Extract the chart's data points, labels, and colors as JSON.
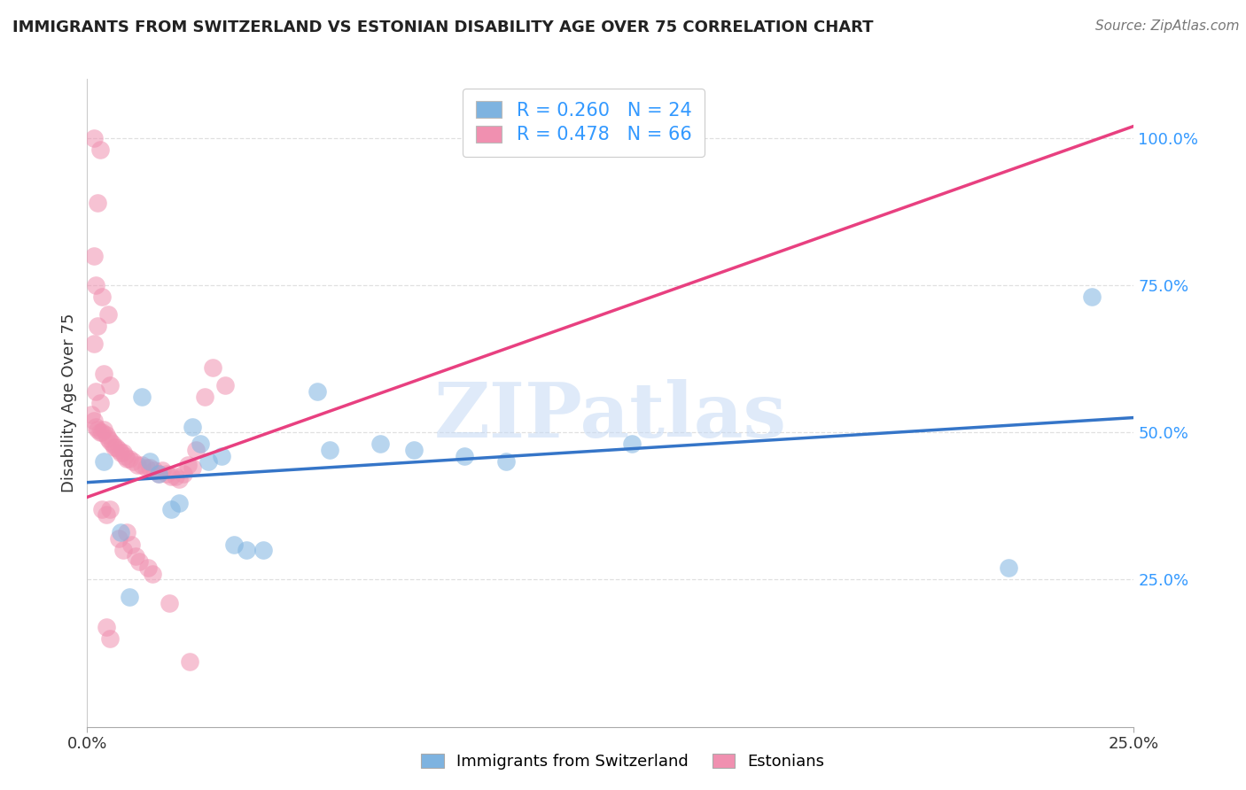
{
  "title": "IMMIGRANTS FROM SWITZERLAND VS ESTONIAN DISABILITY AGE OVER 75 CORRELATION CHART",
  "source": "Source: ZipAtlas.com",
  "ylabel": "Disability Age Over 75",
  "xlim": [
    0.0,
    25.0
  ],
  "ylim": [
    0.0,
    110.0
  ],
  "yticks": [
    25.0,
    50.0,
    75.0,
    100.0
  ],
  "ytick_labels": [
    "25.0%",
    "50.0%",
    "75.0%",
    "100.0%"
  ],
  "xticks": [
    0.0,
    25.0
  ],
  "xtick_labels": [
    "0.0%",
    "25.0%"
  ],
  "legend_r_blue": "R = 0.260",
  "legend_n_blue": "N = 24",
  "legend_r_pink": "R = 0.478",
  "legend_n_pink": "N = 66",
  "color_blue": "#7eb3e0",
  "color_pink": "#f090b0",
  "color_blue_line": "#3575c8",
  "color_pink_line": "#e84080",
  "label_blue": "Immigrants from Switzerland",
  "label_pink": "Estonians",
  "blue_points": [
    [
      0.4,
      45.0
    ],
    [
      0.8,
      33.0
    ],
    [
      1.0,
      22.0
    ],
    [
      1.3,
      56.0
    ],
    [
      1.5,
      45.0
    ],
    [
      1.7,
      43.0
    ],
    [
      2.0,
      37.0
    ],
    [
      2.2,
      38.0
    ],
    [
      2.5,
      51.0
    ],
    [
      2.7,
      48.0
    ],
    [
      2.9,
      45.0
    ],
    [
      3.2,
      46.0
    ],
    [
      3.5,
      31.0
    ],
    [
      3.8,
      30.0
    ],
    [
      4.2,
      30.0
    ],
    [
      5.5,
      57.0
    ],
    [
      5.8,
      47.0
    ],
    [
      7.0,
      48.0
    ],
    [
      7.8,
      47.0
    ],
    [
      9.0,
      46.0
    ],
    [
      10.0,
      45.0
    ],
    [
      13.0,
      48.0
    ],
    [
      22.0,
      27.0
    ],
    [
      24.0,
      73.0
    ]
  ],
  "pink_points": [
    [
      0.15,
      100.0
    ],
    [
      0.25,
      89.0
    ],
    [
      0.3,
      98.0
    ],
    [
      0.15,
      80.0
    ],
    [
      0.2,
      75.0
    ],
    [
      0.15,
      65.0
    ],
    [
      0.25,
      68.0
    ],
    [
      0.2,
      57.0
    ],
    [
      0.3,
      55.0
    ],
    [
      0.35,
      73.0
    ],
    [
      0.5,
      70.0
    ],
    [
      0.4,
      60.0
    ],
    [
      0.55,
      58.0
    ],
    [
      0.1,
      53.0
    ],
    [
      0.15,
      52.0
    ],
    [
      0.2,
      51.0
    ],
    [
      0.25,
      50.5
    ],
    [
      0.3,
      50.0
    ],
    [
      0.35,
      50.0
    ],
    [
      0.4,
      50.5
    ],
    [
      0.45,
      49.5
    ],
    [
      0.5,
      49.0
    ],
    [
      0.55,
      48.5
    ],
    [
      0.6,
      48.0
    ],
    [
      0.65,
      47.5
    ],
    [
      0.7,
      47.5
    ],
    [
      0.75,
      47.0
    ],
    [
      0.8,
      46.5
    ],
    [
      0.85,
      46.5
    ],
    [
      0.9,
      46.0
    ],
    [
      0.95,
      45.5
    ],
    [
      1.0,
      45.5
    ],
    [
      1.1,
      45.0
    ],
    [
      1.2,
      44.5
    ],
    [
      1.3,
      44.5
    ],
    [
      1.4,
      44.0
    ],
    [
      1.5,
      44.0
    ],
    [
      1.6,
      43.5
    ],
    [
      1.7,
      43.0
    ],
    [
      1.8,
      43.5
    ],
    [
      1.9,
      43.0
    ],
    [
      2.0,
      42.5
    ],
    [
      2.1,
      42.5
    ],
    [
      2.2,
      42.0
    ],
    [
      2.3,
      43.0
    ],
    [
      2.4,
      44.5
    ],
    [
      2.5,
      44.0
    ],
    [
      2.6,
      47.0
    ],
    [
      2.8,
      56.0
    ],
    [
      3.0,
      61.0
    ],
    [
      3.3,
      58.0
    ],
    [
      0.35,
      37.0
    ],
    [
      0.45,
      36.0
    ],
    [
      0.55,
      37.0
    ],
    [
      0.75,
      32.0
    ],
    [
      0.85,
      30.0
    ],
    [
      0.95,
      33.0
    ],
    [
      1.05,
      31.0
    ],
    [
      1.15,
      29.0
    ],
    [
      1.25,
      28.0
    ],
    [
      1.45,
      27.0
    ],
    [
      1.55,
      26.0
    ],
    [
      1.95,
      21.0
    ],
    [
      2.45,
      11.0
    ],
    [
      0.45,
      17.0
    ],
    [
      0.55,
      15.0
    ]
  ],
  "blue_line": [
    [
      0.0,
      41.5
    ],
    [
      25.0,
      52.5
    ]
  ],
  "pink_line": [
    [
      0.0,
      39.0
    ],
    [
      25.0,
      102.0
    ]
  ],
  "background_color": "#ffffff",
  "grid_color": "#cccccc",
  "grid_alpha": 0.6,
  "ytick_color": "#3399ff",
  "watermark_text": "ZIPatlas",
  "watermark_color": "#c5daf5",
  "watermark_alpha": 0.55
}
